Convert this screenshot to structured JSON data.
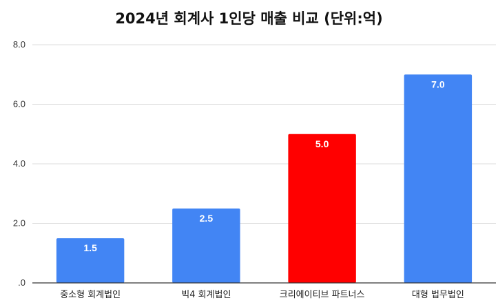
{
  "chart_data": {
    "type": "bar",
    "title": "2024년 회계사 1인당 매출 비교 (단위:억)",
    "xlabel": "",
    "ylabel": "",
    "categories": [
      "중소형 회계법인",
      "빅4 회계법인",
      "크리에이티브 파트너스",
      "대형 법무법인"
    ],
    "values": [
      1.5,
      2.5,
      5.0,
      7.0
    ],
    "data_labels": [
      "1.5",
      "2.5",
      "5.0",
      "7.0"
    ],
    "bar_colors": [
      "#4285F4",
      "#4285F4",
      "#FF0000",
      "#4285F4"
    ],
    "ylim": [
      0,
      8
    ],
    "yticks": [
      0,
      2,
      4,
      6,
      8
    ],
    "ytick_labels": [
      ".0",
      "2.0",
      "4.0",
      "6.0",
      "8.0"
    ],
    "grid": true,
    "legend": "none"
  }
}
